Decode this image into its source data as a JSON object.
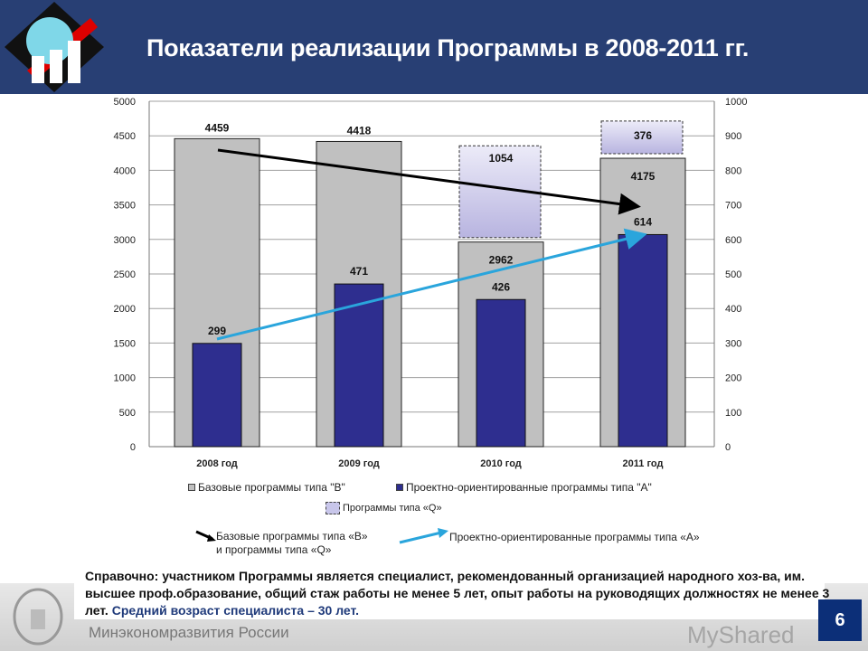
{
  "header": {
    "title": "Показатели реализации Программы в 2008-2011 гг."
  },
  "chart_data": {
    "type": "bar",
    "title": "Показатели реализации Программы в 2008-2011 гг.",
    "categories": [
      "2008 год",
      "2009 год",
      "2010 год",
      "2011 год"
    ],
    "left_axis": {
      "ylim": [
        0,
        5000
      ],
      "ticks": [
        "0",
        "500",
        "1000",
        "1500",
        "2000",
        "2500",
        "3000",
        "3500",
        "4000",
        "4500",
        "5000"
      ]
    },
    "right_axis": {
      "ylim": [
        0,
        1000
      ],
      "ticks": [
        "0",
        "100",
        "200",
        "300",
        "400",
        "500",
        "600",
        "700",
        "800",
        "900",
        "1000"
      ]
    },
    "series": [
      {
        "name": "Базовые программы типа \"B\"",
        "axis": "left",
        "color": "#c0c0c0",
        "values": [
          4459,
          4418,
          2962,
          4175
        ]
      },
      {
        "name": "Проектно-ориентированные программы типа \"A\"",
        "axis": "right",
        "color": "#2e2e8f",
        "values": [
          299,
          471,
          426,
          614
        ]
      },
      {
        "name": "Программы типа «Q»",
        "axis": "stacked",
        "color": "#c8c6ea",
        "values": [
          null,
          null,
          1054,
          376
        ]
      }
    ],
    "grid": true,
    "legend_position": "bottom"
  },
  "legend": {
    "b": "Базовые программы типа \"B\"",
    "a": "Проектно-ориентированные программы типа \"A\"",
    "q": "Программы типа «Q»",
    "arrow_black_1": "Базовые программы типа «В»",
    "arrow_black_2": "и программы типа «Q»",
    "arrow_blue": "Проектно-ориентированные программы типа «А»"
  },
  "note": {
    "main": "Справочно: участником Программы является специалист, рекомендованный организацией народного хоз-ва, им. высшее проф.образование, общий стаж работы не менее 5 лет, опыт работы на руководящих должностях не менее 3 лет.",
    "highlight": "Средний возраст специалиста – 30 лет."
  },
  "footer": {
    "ministry": "Минэкономразвития России",
    "page": "6",
    "watermark": "MyShared"
  }
}
